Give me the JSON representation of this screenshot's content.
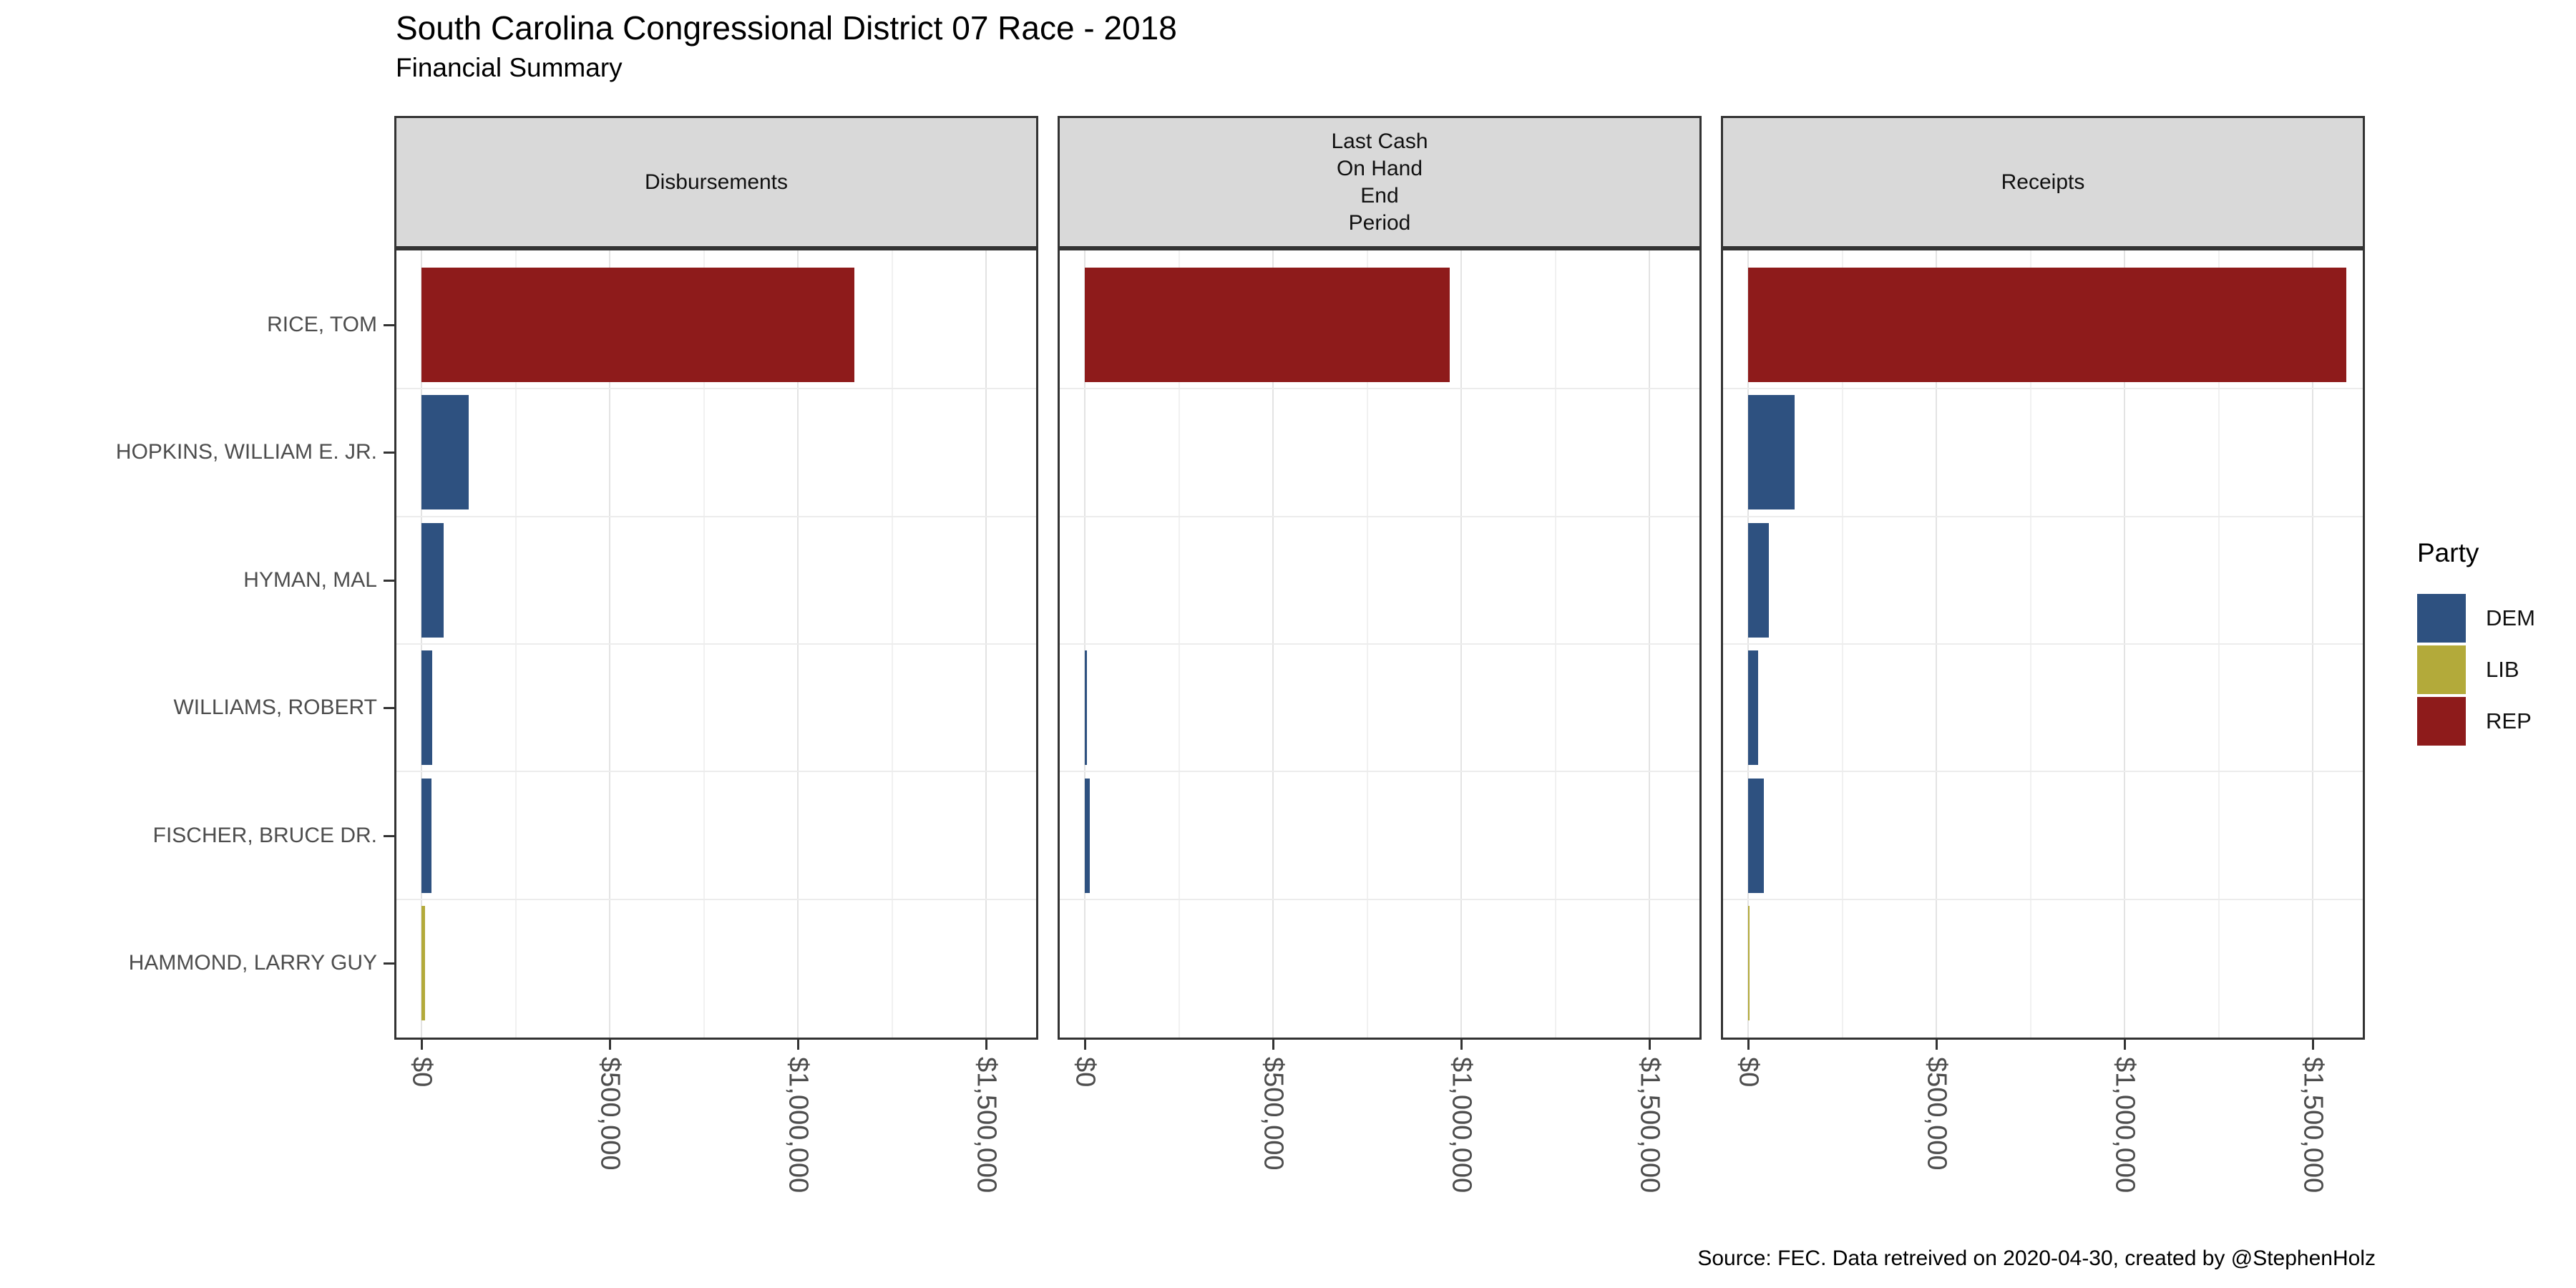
{
  "title": "South Carolina Congressional District 07 Race - 2018",
  "subtitle": "Financial Summary",
  "caption": "Source: FEC. Data retreived on 2020-04-30, created by @StephenHolz",
  "legend": {
    "title": "Party",
    "entries": [
      {
        "label": "DEM",
        "color": "#2e5180"
      },
      {
        "label": "LIB",
        "color": "#b3aa3a"
      },
      {
        "label": "REP",
        "color": "#8e1b1b"
      }
    ]
  },
  "party_colors": {
    "DEM": "#2e5180",
    "LIB": "#b3aa3a",
    "REP": "#8e1b1b"
  },
  "chart_data": {
    "type": "bar",
    "orientation": "horizontal",
    "grid": true,
    "legend_position": "right",
    "categories": [
      "RICE, TOM",
      "HOPKINS, WILLIAM E. JR.",
      "HYMAN, MAL",
      "WILLIAMS, ROBERT",
      "FISCHER, BRUCE DR.",
      "HAMMOND, LARRY GUY"
    ],
    "category_party": [
      "REP",
      "DEM",
      "DEM",
      "DEM",
      "DEM",
      "LIB"
    ],
    "facets": [
      {
        "name": "Disbursements",
        "label_lines": [
          "Disbursements"
        ],
        "values": [
          1150000,
          125000,
          58000,
          28000,
          27000,
          9000
        ]
      },
      {
        "name": "Last Cash On Hand End Period",
        "label_lines": [
          "Last Cash",
          "On Hand",
          "End",
          "Period"
        ],
        "values": [
          970000,
          0,
          0,
          5000,
          13000,
          0
        ]
      },
      {
        "name": "Receipts",
        "label_lines": [
          "Receipts"
        ],
        "values": [
          1590000,
          123000,
          55000,
          26000,
          42000,
          3000
        ]
      }
    ],
    "x_tick_labels": [
      "$0",
      "$500,000",
      "$1,000,000",
      "$1,500,000"
    ],
    "x_tick_values": [
      0,
      500000,
      1000000,
      1500000
    ],
    "x_minor_step": 250000,
    "x_range": [
      0,
      1640000
    ],
    "ylabel": "",
    "xlabel": ""
  }
}
